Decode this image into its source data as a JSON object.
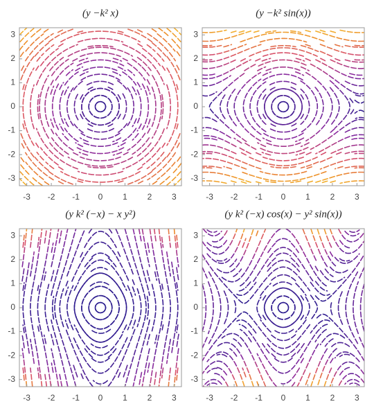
{
  "chart_data": [
    {
      "type": "streamplot",
      "title": "(y   −k² x)",
      "xlim": [
        -3.3,
        3.3
      ],
      "ylim": [
        -3.3,
        3.3
      ],
      "xticks": [
        -3,
        -2,
        -1,
        0,
        1,
        2,
        3
      ],
      "yticks": [
        -3,
        -2,
        -1,
        0,
        1,
        2,
        3
      ]
    },
    {
      "type": "streamplot",
      "title": "(y   −k² sin(x))",
      "xlim": [
        -3.3,
        3.3
      ],
      "ylim": [
        -3.3,
        3.3
      ],
      "xticks": [
        -3,
        -2,
        -1,
        0,
        1,
        2,
        3
      ],
      "yticks": [
        -3,
        -2,
        -1,
        0,
        1,
        2,
        3
      ]
    },
    {
      "type": "streamplot",
      "title": "(y   k² (−x) − x y²)",
      "xlim": [
        -3.3,
        3.3
      ],
      "ylim": [
        -3.3,
        3.3
      ],
      "xticks": [
        -3,
        -2,
        -1,
        0,
        1,
        2,
        3
      ],
      "yticks": [
        -3,
        -2,
        -1,
        0,
        1,
        2,
        3
      ]
    },
    {
      "type": "streamplot",
      "title": "(y   k² (−x) cos(x) − y² sin(x))",
      "xlim": [
        -3.3,
        3.3
      ],
      "ylim": [
        -3.3,
        3.3
      ],
      "xticks": [
        -3,
        -2,
        -1,
        0,
        1,
        2,
        3
      ],
      "yticks": [
        -3,
        -2,
        -1,
        0,
        1,
        2,
        3
      ]
    }
  ]
}
